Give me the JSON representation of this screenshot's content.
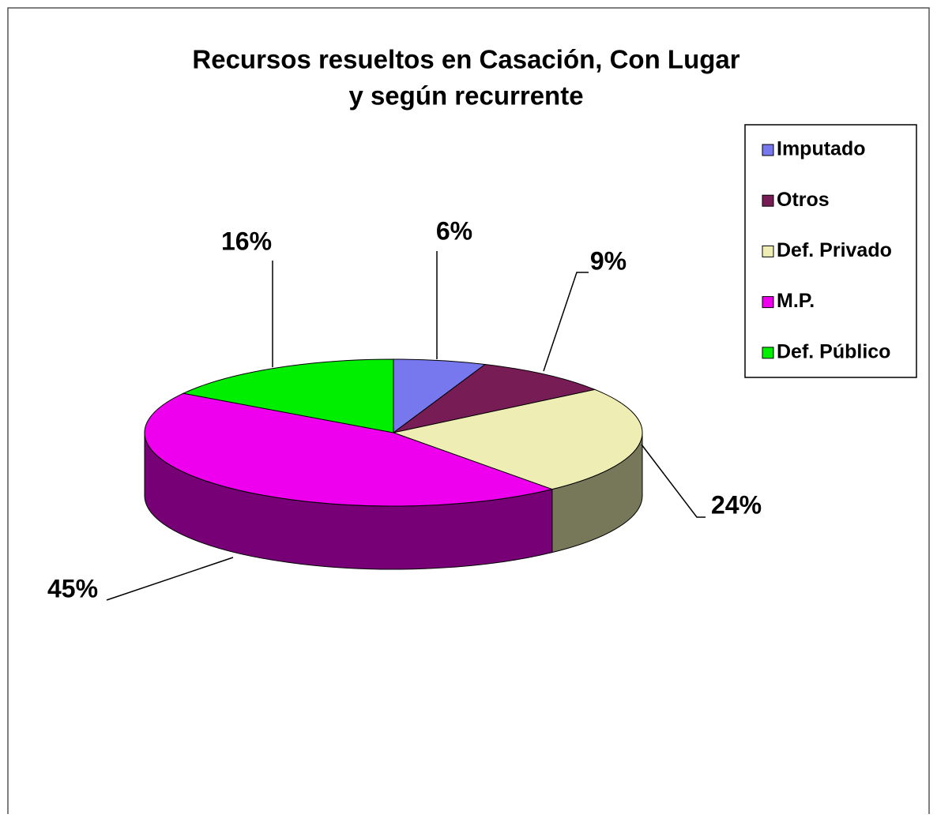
{
  "chart_data": {
    "type": "pie3d",
    "title": [
      "Recursos resueltos en Casación, Con Lugar",
      "y según recurrente"
    ],
    "categories": [
      "Imputado",
      "Otros",
      "Def. Privado",
      "M.P.",
      "Def. Público"
    ],
    "values": [
      6,
      9,
      24,
      45,
      16
    ],
    "value_labels": [
      "6%",
      "9%",
      "24%",
      "45%",
      "16%"
    ],
    "colors": [
      "#7777ee",
      "#771c55",
      "#eeeeb4",
      "#ee00ee",
      "#00ee00"
    ],
    "legend": "right"
  }
}
